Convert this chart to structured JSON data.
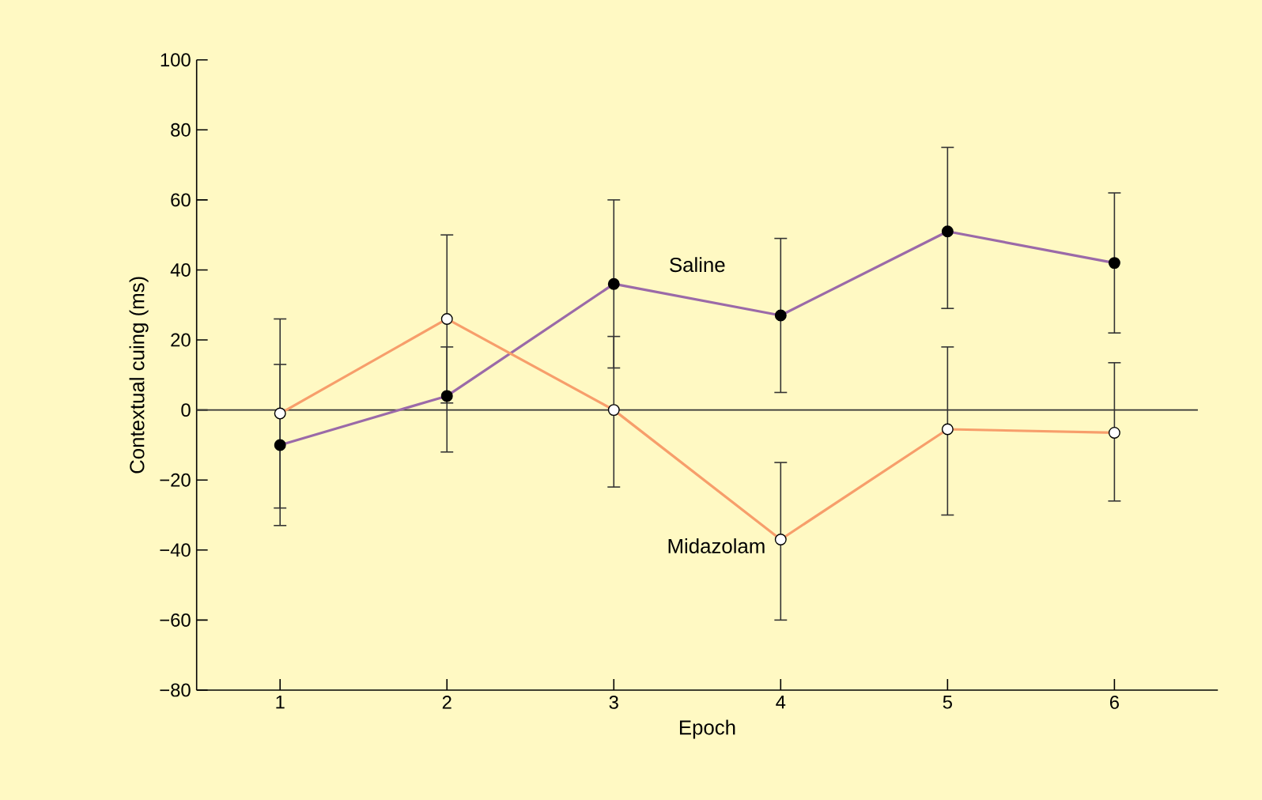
{
  "chart_data": {
    "type": "line",
    "xlabel": "Epoch",
    "ylabel": "Contextual cuing (ms)",
    "x": [
      1,
      2,
      3,
      4,
      5,
      6
    ],
    "xlim": [
      0.5,
      6.62
    ],
    "xticks": [
      1,
      2,
      3,
      4,
      5,
      6
    ],
    "ylim": [
      -80,
      100
    ],
    "yticks": [
      {
        "value": -80,
        "label": "−80"
      },
      {
        "value": -60,
        "label": "−60"
      },
      {
        "value": -40,
        "label": "−40"
      },
      {
        "value": -20,
        "label": "−20"
      },
      0,
      20,
      40,
      60,
      80,
      100
    ],
    "marker": "circle",
    "ref_lines": [
      {
        "axis": "y",
        "value": 0,
        "color": "#333333"
      }
    ],
    "series": [
      {
        "name": "Saline",
        "color": "#9b6aa8",
        "values": [
          -10,
          4,
          36,
          27,
          51,
          42
        ],
        "errors": [
          [
            -33,
            13
          ],
          [
            -12,
            18
          ],
          [
            12,
            60
          ],
          [
            5,
            49
          ],
          [
            29,
            75
          ],
          [
            22,
            62
          ]
        ]
      },
      {
        "name": "Midazolam",
        "color": "#f79e6b",
        "values": [
          -1,
          26,
          0,
          -37,
          -5.5,
          -6.5
        ],
        "errors": [
          [
            -28,
            26
          ],
          [
            2,
            50
          ],
          [
            -22,
            21
          ],
          [
            -60,
            -15
          ],
          [
            -30,
            18
          ],
          [
            -26,
            13.5
          ]
        ]
      }
    ]
  }
}
